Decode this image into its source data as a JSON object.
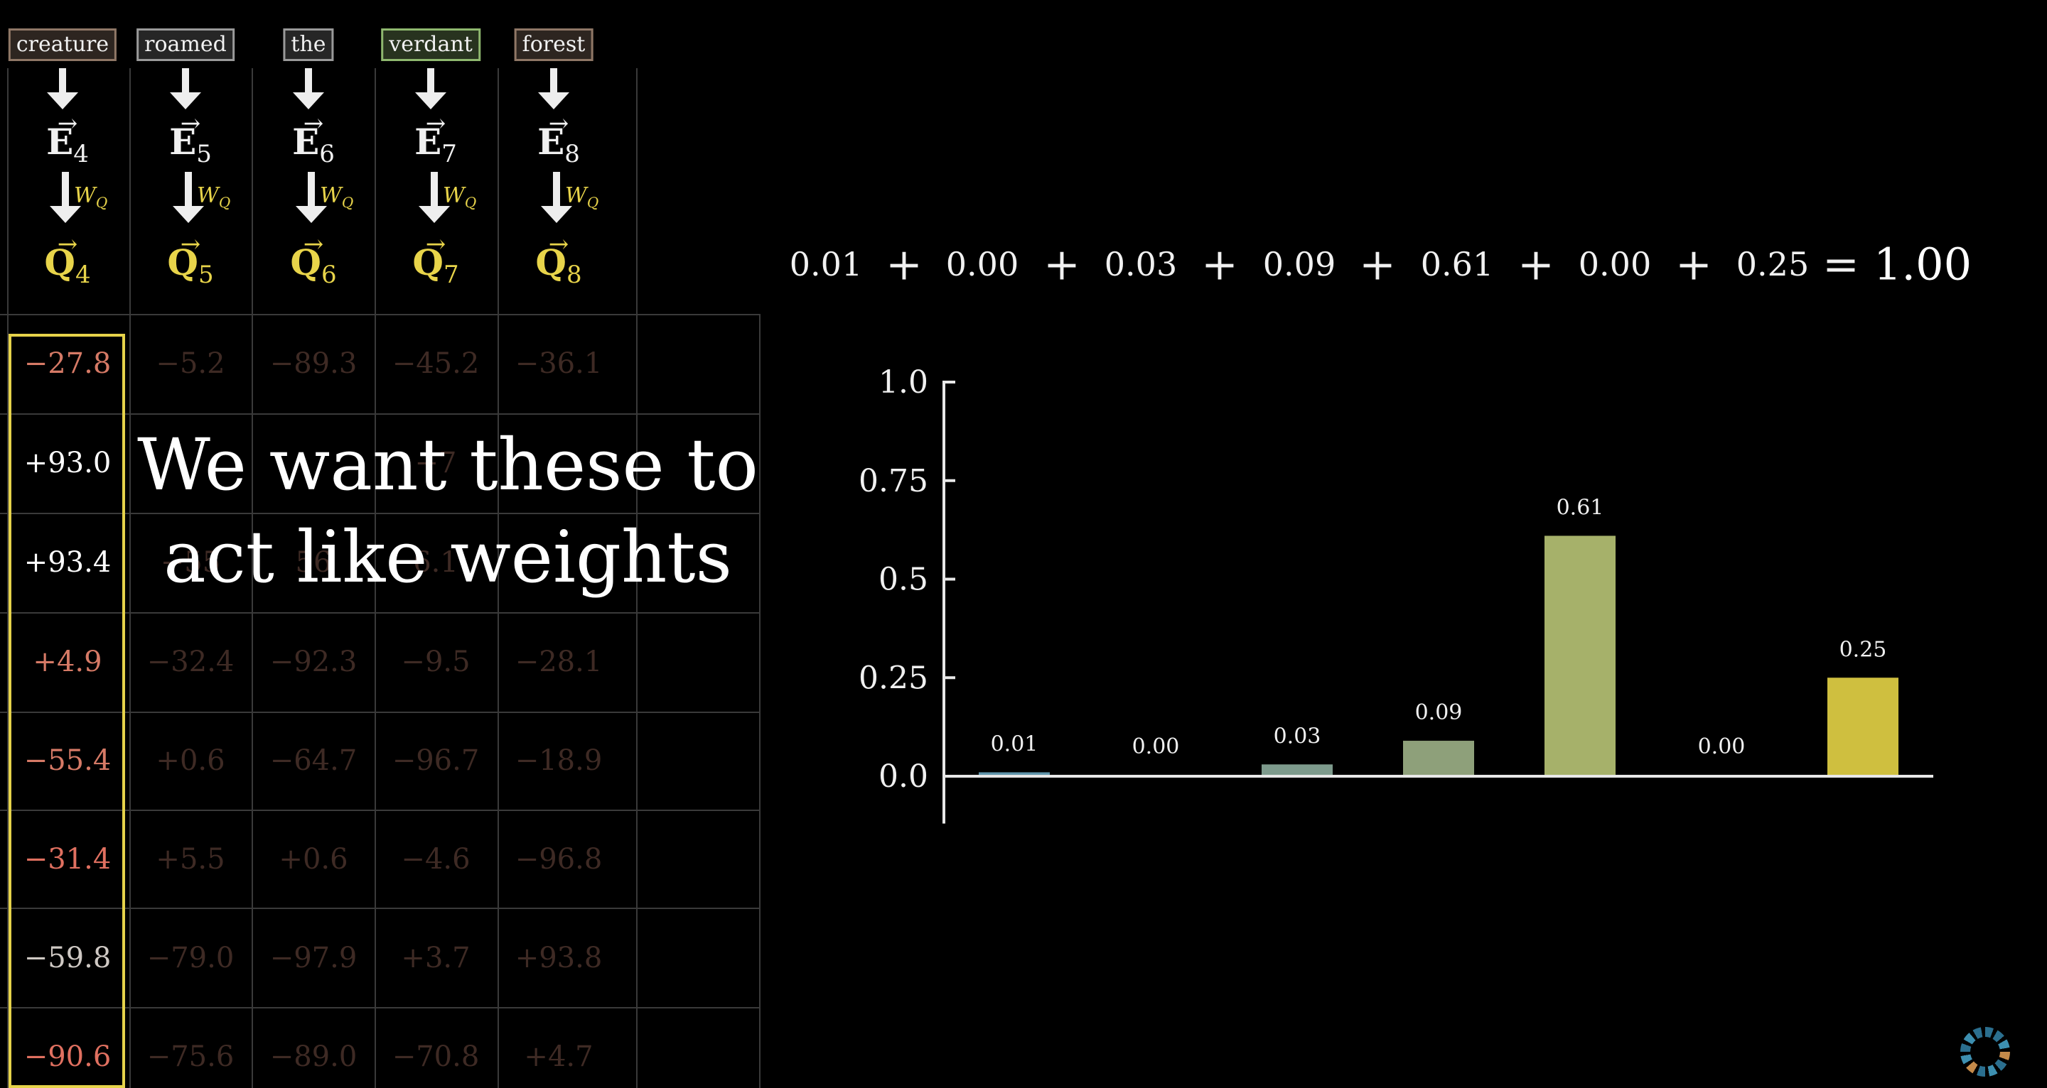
{
  "tokens": [
    {
      "text": "creature",
      "border": "#8f7766",
      "bg": "#2d2520"
    },
    {
      "text": "roamed",
      "border": "#9a9a9a",
      "bg": "#262626"
    },
    {
      "text": "the",
      "border": "#9a9a9a",
      "bg": "#262626"
    },
    {
      "text": "verdant",
      "border": "#8fb86f",
      "bg": "#28331f"
    },
    {
      "text": "forest",
      "border": "#8f7766",
      "bg": "#2d2520"
    }
  ],
  "e_vectors": [
    {
      "letter": "E",
      "sub": "4"
    },
    {
      "letter": "E",
      "sub": "5"
    },
    {
      "letter": "E",
      "sub": "6"
    },
    {
      "letter": "E",
      "sub": "7"
    },
    {
      "letter": "E",
      "sub": "8"
    }
  ],
  "q_vectors": [
    {
      "letter": "Q",
      "sub": "4"
    },
    {
      "letter": "Q",
      "sub": "5"
    },
    {
      "letter": "Q",
      "sub": "6"
    },
    {
      "letter": "Q",
      "sub": "7"
    },
    {
      "letter": "Q",
      "sub": "8"
    }
  ],
  "wq_label": {
    "main": "W",
    "sub": "Q"
  },
  "score_rows": [
    [
      "−27.8",
      "−5.2",
      "−89.3",
      "−45.2",
      "−36.1"
    ],
    [
      "+93.0",
      "",
      "",
      "−7",
      ""
    ],
    [
      "+93.4",
      "−55",
      "56",
      "6.1",
      ""
    ],
    [
      "+4.9",
      "−32.4",
      "−92.3",
      "−9.5",
      "−28.1"
    ],
    [
      "−55.4",
      "+0.6",
      "−64.7",
      "−96.7",
      "−18.9"
    ],
    [
      "−31.4",
      "+5.5",
      "+0.6",
      "−4.6",
      "−96.8"
    ],
    [
      "−59.8",
      "−79.0",
      "−97.9",
      "+3.7",
      "+93.8"
    ],
    [
      "−90.6",
      "−75.6",
      "−89.0",
      "−70.8",
      "+4.7"
    ]
  ],
  "highlight_colors": [
    "#d67a66",
    "#ffffff",
    "#ffffff",
    "#d67a66",
    "#d67a66",
    "#e07060",
    "#cfc9c4",
    "#e07060"
  ],
  "overlay": {
    "line1": "We want these to",
    "line2": "act like weights"
  },
  "equation": {
    "terms": [
      "0.01",
      "0.00",
      "0.03",
      "0.09",
      "0.61",
      "0.00",
      "0.25"
    ],
    "plus": "+",
    "equals": "=",
    "total": "1.00"
  },
  "chart_data": {
    "type": "bar",
    "values": [
      0.01,
      0.0,
      0.03,
      0.09,
      0.61,
      0.0,
      0.25
    ],
    "labels": [
      "0.01",
      "0.00",
      "0.03",
      "0.09",
      "0.61",
      "0.00",
      "0.25"
    ],
    "colors": [
      "#5f95ab",
      "#6a8f8c",
      "#7d9a8c",
      "#8ea07a",
      "#a6b16a",
      "#b3b462",
      "#cfbf3f"
    ],
    "yticks": [
      "1.0",
      "0.75",
      "0.5",
      "0.25",
      "0.0"
    ],
    "ytick_values": [
      1.0,
      0.75,
      0.5,
      0.25,
      0.0
    ],
    "ylim": [
      -0.12,
      1.0
    ],
    "xlabel": "",
    "ylabel": "",
    "grid": false
  }
}
